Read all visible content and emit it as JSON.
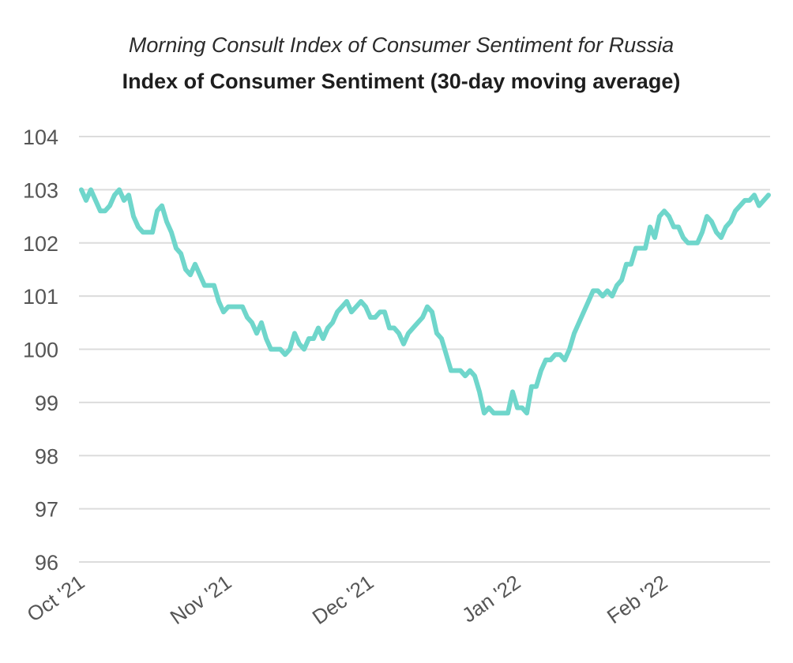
{
  "chart_data": {
    "type": "line",
    "subtitle": "Morning Consult Index of Consumer Sentiment for Russia",
    "title": "Index of Consumer Sentiment (30-day moving average)",
    "xlabel": "",
    "ylabel": "",
    "ylim": [
      96,
      104
    ],
    "yticks": [
      "104",
      "103",
      "102",
      "101",
      "100",
      "99",
      "98",
      "97",
      "96"
    ],
    "x_tick_labels": [
      {
        "label": "Oct '21",
        "day": 0
      },
      {
        "label": "Nov '21",
        "day": 31
      },
      {
        "label": "Dec '21",
        "day": 61
      },
      {
        "label": "Jan '22",
        "day": 92
      },
      {
        "label": "Feb '22",
        "day": 123
      }
    ],
    "grid": true,
    "series": [
      {
        "name": "Index of Consumer Sentiment",
        "color": "#6fd6cb",
        "points": [
          [
            0,
            103.0
          ],
          [
            1,
            102.8
          ],
          [
            2,
            103.0
          ],
          [
            3,
            102.8
          ],
          [
            4,
            102.6
          ],
          [
            5,
            102.6
          ],
          [
            6,
            102.7
          ],
          [
            7,
            102.9
          ],
          [
            8,
            103.0
          ],
          [
            9,
            102.8
          ],
          [
            10,
            102.9
          ],
          [
            11,
            102.5
          ],
          [
            12,
            102.3
          ],
          [
            13,
            102.2
          ],
          [
            14,
            102.2
          ],
          [
            15,
            102.2
          ],
          [
            16,
            102.6
          ],
          [
            17,
            102.7
          ],
          [
            18,
            102.4
          ],
          [
            19,
            102.2
          ],
          [
            20,
            101.9
          ],
          [
            21,
            101.8
          ],
          [
            22,
            101.5
          ],
          [
            23,
            101.4
          ],
          [
            24,
            101.6
          ],
          [
            25,
            101.4
          ],
          [
            26,
            101.2
          ],
          [
            27,
            101.2
          ],
          [
            28,
            101.2
          ],
          [
            29,
            100.9
          ],
          [
            30,
            100.7
          ],
          [
            31,
            100.8
          ],
          [
            32,
            100.8
          ],
          [
            33,
            100.8
          ],
          [
            34,
            100.8
          ],
          [
            35,
            100.6
          ],
          [
            36,
            100.5
          ],
          [
            37,
            100.3
          ],
          [
            38,
            100.5
          ],
          [
            39,
            100.2
          ],
          [
            40,
            100.0
          ],
          [
            41,
            100.0
          ],
          [
            42,
            100.0
          ],
          [
            43,
            99.9
          ],
          [
            44,
            100.0
          ],
          [
            45,
            100.3
          ],
          [
            46,
            100.1
          ],
          [
            47,
            100.0
          ],
          [
            48,
            100.2
          ],
          [
            49,
            100.2
          ],
          [
            50,
            100.4
          ],
          [
            51,
            100.2
          ],
          [
            52,
            100.4
          ],
          [
            53,
            100.5
          ],
          [
            54,
            100.7
          ],
          [
            55,
            100.8
          ],
          [
            56,
            100.9
          ],
          [
            57,
            100.7
          ],
          [
            58,
            100.8
          ],
          [
            59,
            100.9
          ],
          [
            60,
            100.8
          ],
          [
            61,
            100.6
          ],
          [
            62,
            100.6
          ],
          [
            63,
            100.7
          ],
          [
            64,
            100.7
          ],
          [
            65,
            100.4
          ],
          [
            66,
            100.4
          ],
          [
            67,
            100.3
          ],
          [
            68,
            100.1
          ],
          [
            69,
            100.3
          ],
          [
            70,
            100.4
          ],
          [
            71,
            100.5
          ],
          [
            72,
            100.6
          ],
          [
            73,
            100.8
          ],
          [
            74,
            100.7
          ],
          [
            75,
            100.3
          ],
          [
            76,
            100.2
          ],
          [
            77,
            99.9
          ],
          [
            78,
            99.6
          ],
          [
            79,
            99.6
          ],
          [
            80,
            99.6
          ],
          [
            81,
            99.5
          ],
          [
            82,
            99.6
          ],
          [
            83,
            99.5
          ],
          [
            84,
            99.2
          ],
          [
            85,
            98.8
          ],
          [
            86,
            98.9
          ],
          [
            87,
            98.8
          ],
          [
            88,
            98.8
          ],
          [
            89,
            98.8
          ],
          [
            90,
            98.8
          ],
          [
            91,
            99.2
          ],
          [
            92,
            98.9
          ],
          [
            93,
            98.9
          ],
          [
            94,
            98.8
          ],
          [
            95,
            99.3
          ],
          [
            96,
            99.3
          ],
          [
            97,
            99.6
          ],
          [
            98,
            99.8
          ],
          [
            99,
            99.8
          ],
          [
            100,
            99.9
          ],
          [
            101,
            99.9
          ],
          [
            102,
            99.8
          ],
          [
            103,
            100.0
          ],
          [
            104,
            100.3
          ],
          [
            105,
            100.5
          ],
          [
            106,
            100.7
          ],
          [
            107,
            100.9
          ],
          [
            108,
            101.1
          ],
          [
            109,
            101.1
          ],
          [
            110,
            101.0
          ],
          [
            111,
            101.1
          ],
          [
            112,
            101.0
          ],
          [
            113,
            101.2
          ],
          [
            114,
            101.3
          ],
          [
            115,
            101.6
          ],
          [
            116,
            101.6
          ],
          [
            117,
            101.9
          ],
          [
            118,
            101.9
          ],
          [
            119,
            101.9
          ],
          [
            120,
            102.3
          ],
          [
            121,
            102.1
          ],
          [
            122,
            102.5
          ],
          [
            123,
            102.6
          ],
          [
            124,
            102.5
          ],
          [
            125,
            102.3
          ],
          [
            126,
            102.3
          ],
          [
            127,
            102.1
          ],
          [
            128,
            102.0
          ],
          [
            129,
            102.0
          ],
          [
            130,
            102.0
          ],
          [
            131,
            102.2
          ],
          [
            132,
            102.5
          ],
          [
            133,
            102.4
          ],
          [
            134,
            102.2
          ],
          [
            135,
            102.1
          ],
          [
            136,
            102.3
          ],
          [
            137,
            102.4
          ],
          [
            138,
            102.6
          ],
          [
            139,
            102.7
          ],
          [
            140,
            102.8
          ],
          [
            141,
            102.8
          ],
          [
            142,
            102.9
          ],
          [
            143,
            102.7
          ],
          [
            144,
            102.8
          ],
          [
            145,
            102.9
          ]
        ]
      }
    ]
  }
}
